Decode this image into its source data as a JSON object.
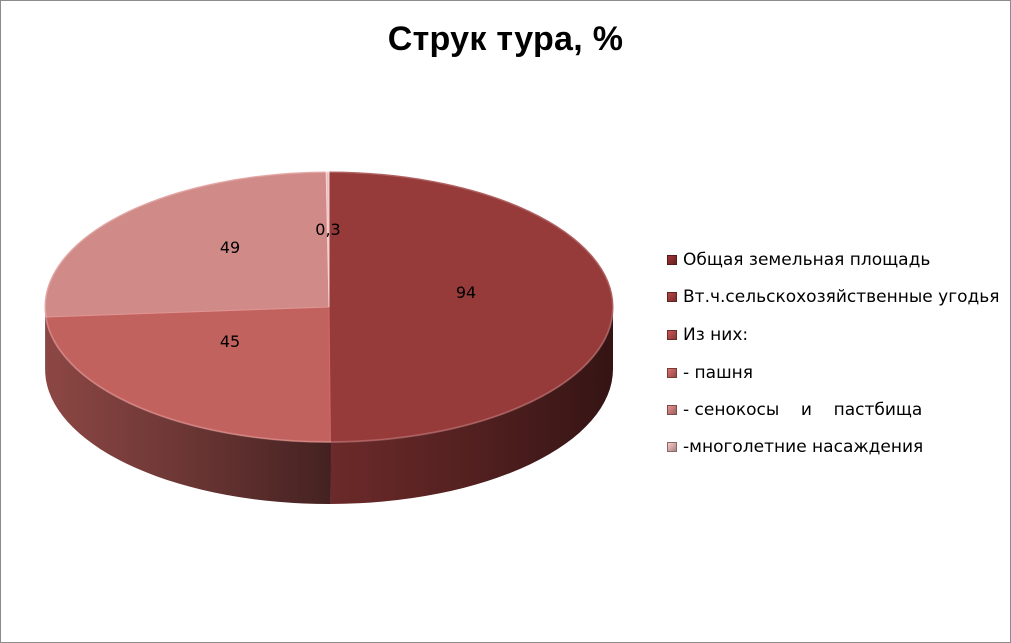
{
  "chart_data": {
    "type": "pie",
    "title": "Струк тура, %",
    "categories": [
      "Общая земельная площадь",
      "Вт.ч.сельскохозяйственные угодья",
      "Из них:",
      "- пашня",
      "- сенокосы    и    пастбища",
      "-многолетние насаждения"
    ],
    "slices": [
      {
        "label": "94",
        "value": 94,
        "color": "#963a3a"
      },
      {
        "label": "45",
        "value": 45,
        "color": "#c2625f"
      },
      {
        "label": "49",
        "value": 49,
        "color": "#d08a88"
      },
      {
        "label": "0,3",
        "value": 0.3,
        "color": "#e6c3c2"
      }
    ],
    "legend_colors": [
      "#8a2d2d",
      "#a13c3a",
      "#b34b48",
      "#c2625f",
      "#cc7f7d",
      "#ddb0ae"
    ],
    "legend_position": "right",
    "is_3d": true
  }
}
